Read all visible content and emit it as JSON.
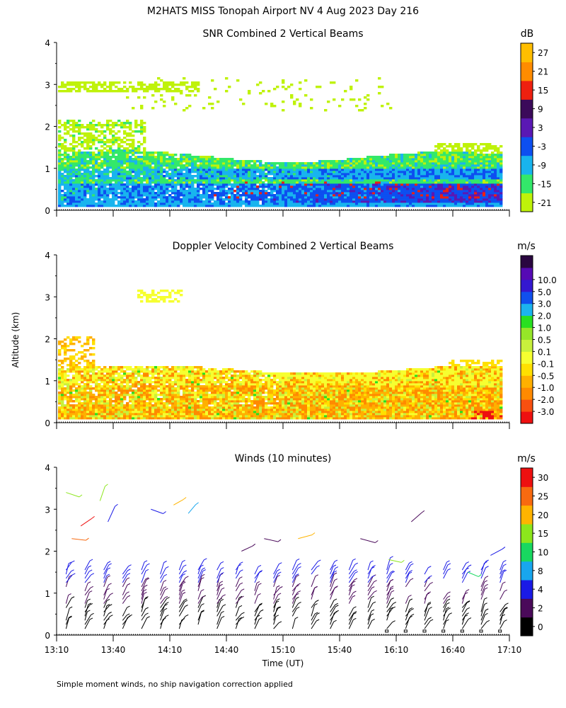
{
  "figure": {
    "title": "M2HATS MISS Tonopah Airport NV   4 Aug 2023 Day 216",
    "ylabel": "Altitude (km)",
    "xlabel": "Time (UT)",
    "footnote": "Simple moment winds, no ship navigation correction applied"
  },
  "chart_data": [
    {
      "type": "heatmap",
      "title": "SNR Combined 2 Vertical Beams",
      "colorbar_label": "dB",
      "x_ticks": [
        "13:10",
        "13:40",
        "14:10",
        "14:40",
        "15:10",
        "15:40",
        "16:10",
        "16:40",
        "17:10"
      ],
      "y_ticks": [
        "0",
        "1",
        "2",
        "3",
        "4"
      ],
      "xlim": [
        "13:10",
        "17:10"
      ],
      "ylim": [
        0,
        4
      ],
      "colorbar": {
        "colors": [
          "#bff20a",
          "#33e86a",
          "#18b4ee",
          "#0d4ff0",
          "#5a18b4",
          "#3b0a5a",
          "#ee2010",
          "#ff8c00",
          "#ffbe00"
        ],
        "labels": [
          "-21",
          "-15",
          "-9",
          "-3",
          "3",
          "9",
          "15",
          "21",
          "27"
        ]
      }
    },
    {
      "type": "heatmap",
      "title": "Doppler Velocity Combined 2 Vertical Beams",
      "colorbar_label": "m/s",
      "x_ticks": [
        "13:10",
        "13:40",
        "14:10",
        "14:40",
        "15:10",
        "15:40",
        "16:10",
        "16:40",
        "17:10"
      ],
      "y_ticks": [
        "0",
        "1",
        "2",
        "3",
        "4"
      ],
      "xlim": [
        "13:10",
        "17:10"
      ],
      "ylim": [
        0,
        4
      ],
      "colorbar": {
        "colors": [
          "#ee1010",
          "#f85010",
          "#ff8a00",
          "#ffb000",
          "#ffe000",
          "#f6ff30",
          "#c8f03c",
          "#96e628",
          "#28e020",
          "#1cb4ee",
          "#1050ee",
          "#3418d0",
          "#560ab4",
          "#2a0640"
        ],
        "labels": [
          "-3.0",
          "-2.0",
          "-1.0",
          "-0.5",
          "-0.1",
          "0.1",
          "0.5",
          "1.0",
          "2.0",
          "3.0",
          "5.0",
          "10.0"
        ]
      }
    },
    {
      "type": "scatter",
      "title": "Winds (10 minutes)",
      "colorbar_label": "m/s",
      "x_ticks": [
        "13:10",
        "13:40",
        "14:10",
        "14:40",
        "15:10",
        "15:40",
        "16:10",
        "16:40",
        "17:10"
      ],
      "y_ticks": [
        "0",
        "1",
        "2",
        "3",
        "4"
      ],
      "xlim": [
        "13:10",
        "17:10"
      ],
      "ylim": [
        0,
        4
      ],
      "colorbar": {
        "colors": [
          "#000000",
          "#4a0a5a",
          "#1a1ae6",
          "#18a6ee",
          "#18d860",
          "#8ce61c",
          "#ffb400",
          "#f86a10",
          "#ee1010"
        ],
        "labels": [
          "0",
          "2",
          "4",
          "8",
          "10",
          "15",
          "20",
          "25",
          "30"
        ]
      }
    }
  ]
}
